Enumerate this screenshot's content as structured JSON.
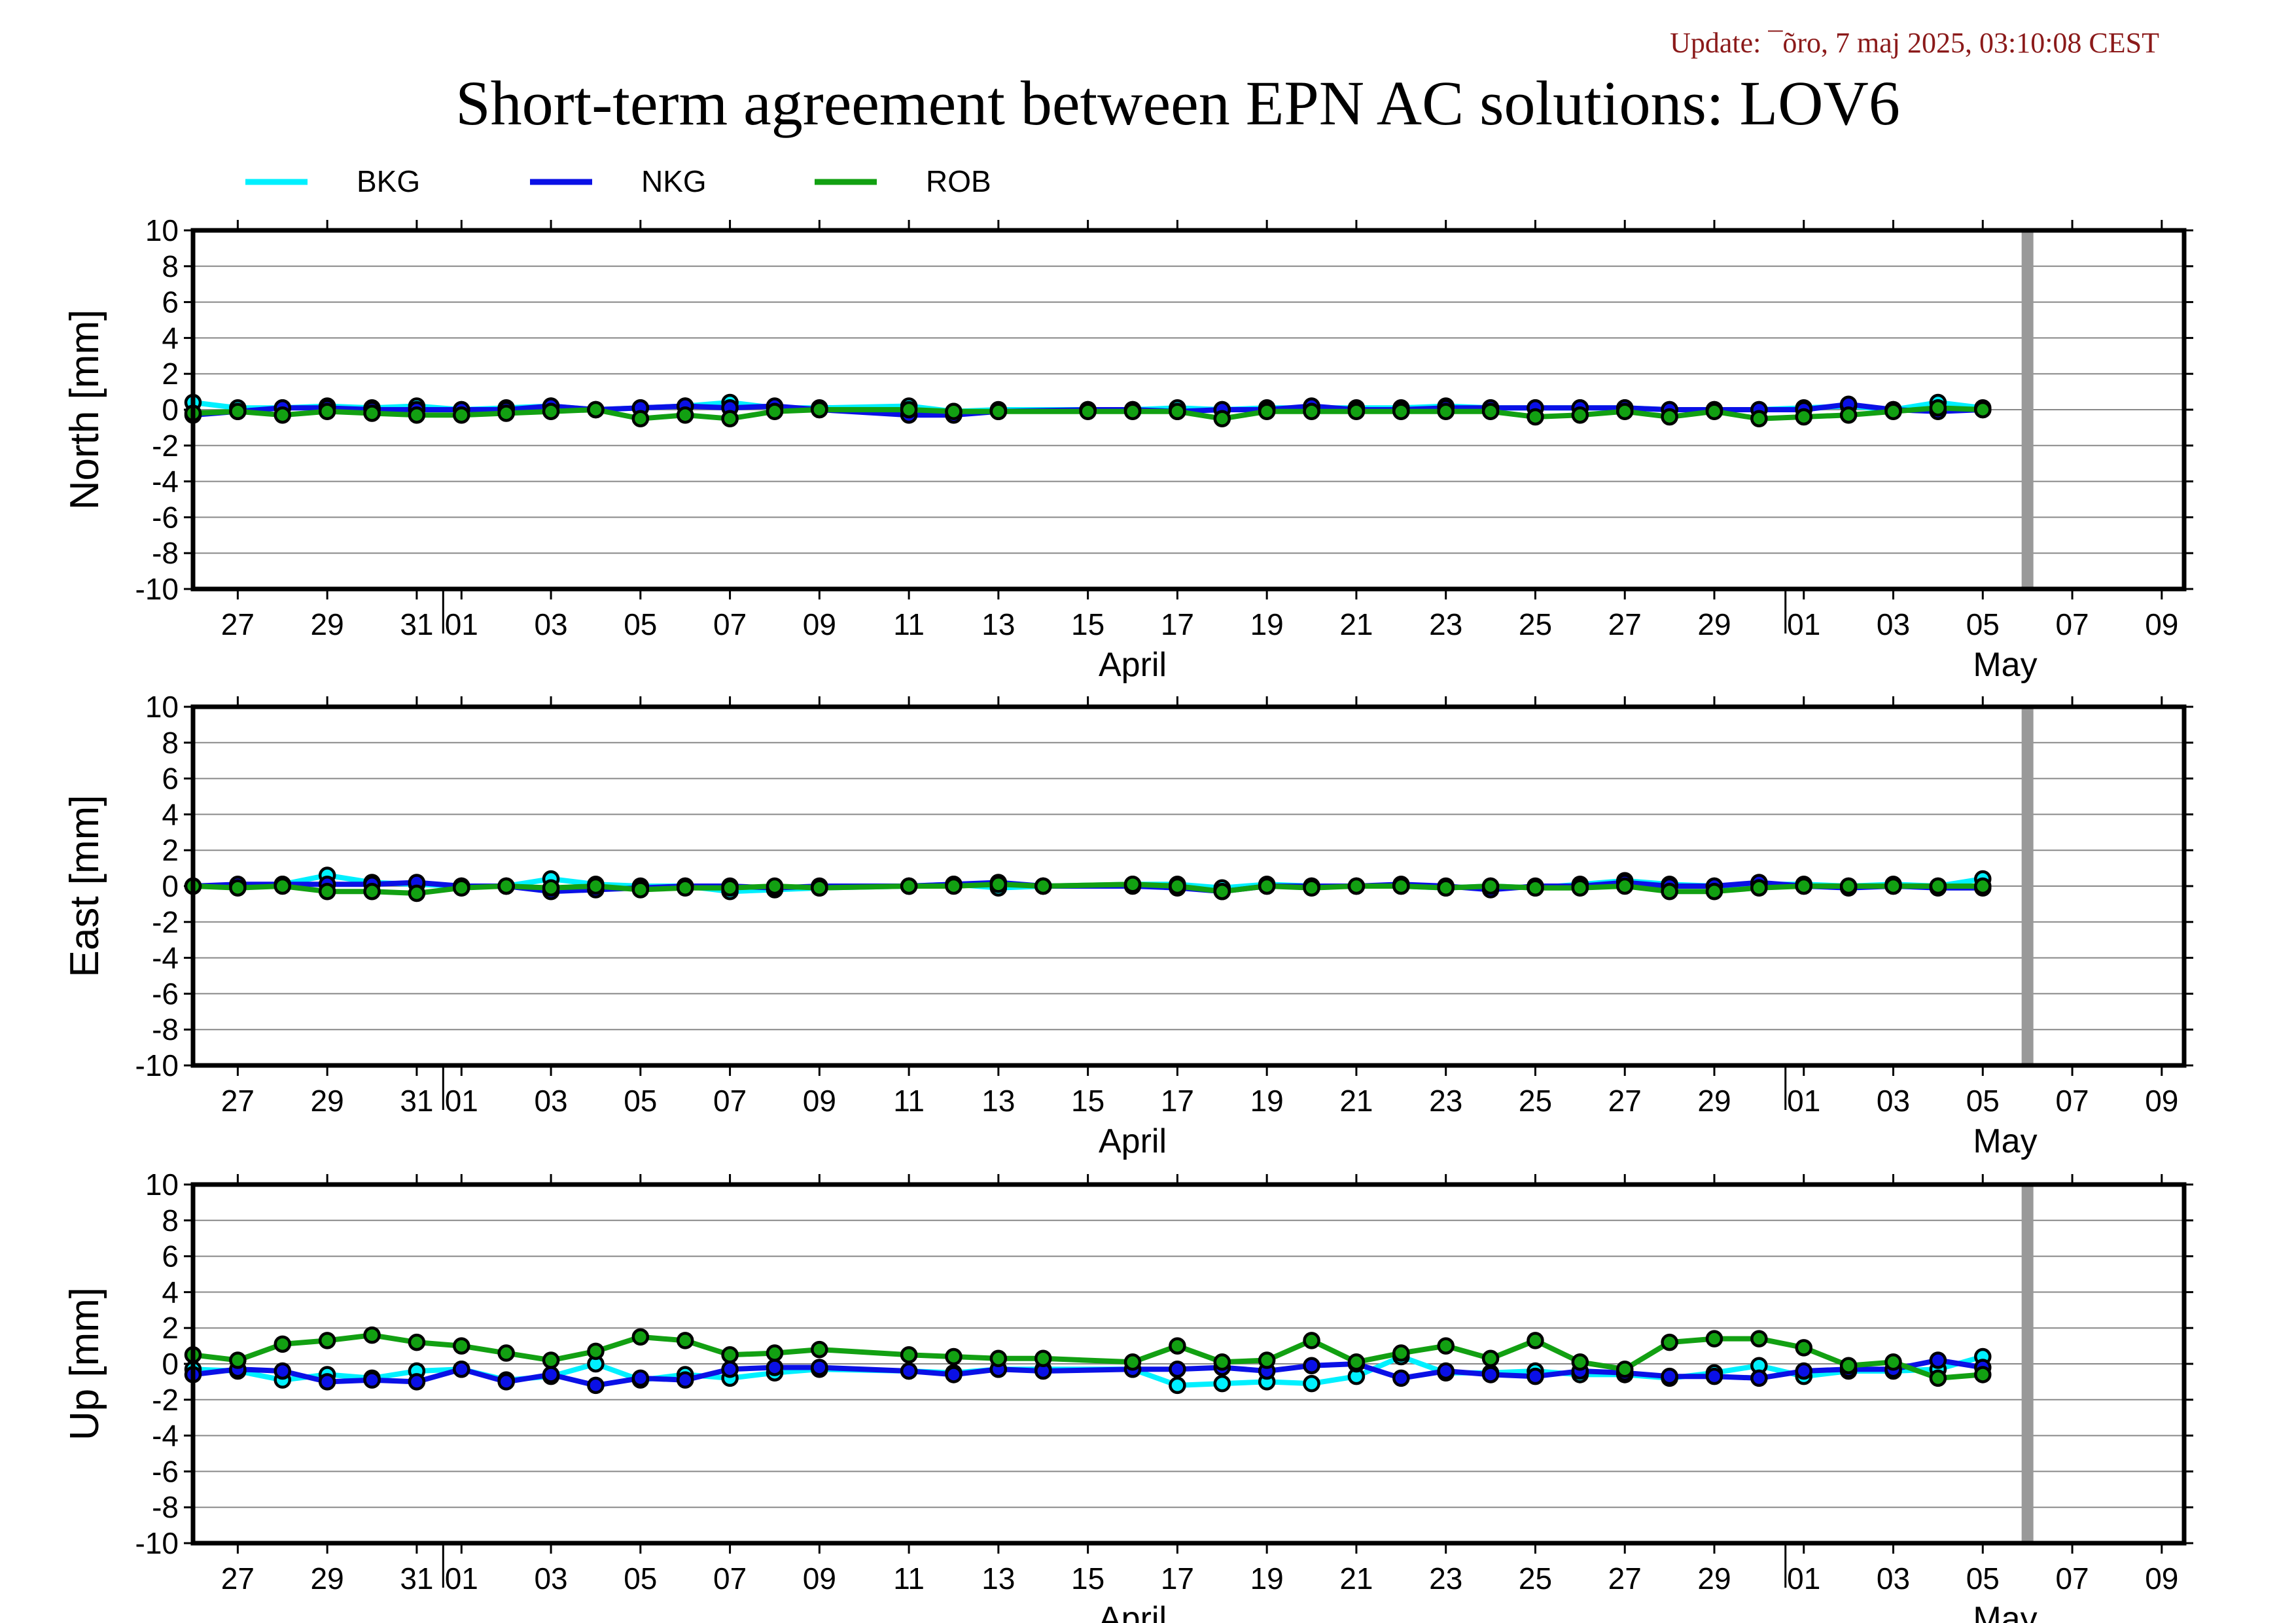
{
  "header": {
    "update_text": "Update: ¯õro, 7 maj 2025, 03:10:08 CEST",
    "title": "Short-term agreement between EPN AC solutions: LOV6"
  },
  "colors": {
    "BKG": "#00f0ff",
    "NKG": "#0a10e6",
    "ROB": "#12a012",
    "marker_edge": "#000000",
    "gridline": "#888888",
    "today_marker": "#999999"
  },
  "chart_data": [
    {
      "type": "line",
      "ylabel": "North [mm]",
      "ylim": [
        -10,
        10
      ],
      "yticks": [
        -10,
        -8,
        -6,
        -4,
        -2,
        0,
        2,
        4,
        6,
        8,
        10
      ],
      "x": [
        0,
        1,
        2,
        3,
        4,
        5,
        6,
        7,
        8,
        9,
        10,
        11,
        12,
        13,
        14,
        16,
        17,
        18,
        20,
        21,
        22,
        23,
        24,
        25,
        26,
        27,
        28,
        29,
        30,
        31,
        32,
        33,
        34,
        35,
        36,
        37,
        38,
        39,
        40
      ],
      "x_dates": [
        "Mar 26",
        "Mar 27",
        "Mar 28",
        "Mar 29",
        "Mar 30",
        "Mar 31",
        "Apr 01",
        "Apr 02",
        "Apr 03",
        "Apr 04",
        "Apr 05",
        "Apr 06",
        "Apr 07",
        "Apr 08",
        "Apr 09",
        "Apr 11",
        "Apr 12",
        "Apr 13",
        "Apr 15",
        "Apr 16",
        "Apr 17",
        "Apr 18",
        "Apr 19",
        "Apr 20",
        "Apr 21",
        "Apr 22",
        "Apr 23",
        "Apr 24",
        "Apr 25",
        "Apr 26",
        "Apr 27",
        "Apr 28",
        "Apr 29",
        "Apr 30",
        "May 01",
        "May 02",
        "May 03",
        "May 04",
        "May 05"
      ],
      "series": [
        {
          "name": "BKG",
          "values": [
            0.4,
            0.1,
            0.1,
            0.2,
            0.1,
            0.2,
            0.0,
            0.1,
            0.2,
            0.0,
            0.1,
            0.2,
            0.4,
            0.1,
            0.1,
            0.2,
            -0.1,
            0.0,
            0.0,
            0.0,
            0.1,
            0.0,
            0.1,
            0.1,
            0.1,
            0.1,
            0.2,
            0.1,
            0.1,
            0.1,
            0.1,
            0.0,
            0.0,
            0.0,
            0.1,
            0.2,
            0.0,
            0.4,
            0.1
          ]
        },
        {
          "name": "NKG",
          "values": [
            -0.3,
            -0.1,
            0.1,
            0.1,
            0.0,
            0.0,
            0.0,
            0.0,
            0.2,
            0.0,
            0.1,
            0.2,
            0.1,
            0.2,
            0.0,
            -0.3,
            -0.3,
            -0.1,
            0.0,
            0.0,
            -0.1,
            0.0,
            0.0,
            0.2,
            0.0,
            0.0,
            0.1,
            0.1,
            0.1,
            0.1,
            0.1,
            0.0,
            0.0,
            0.0,
            0.0,
            0.3,
            0.0,
            -0.1,
            0.0
          ]
        },
        {
          "name": "ROB",
          "values": [
            -0.2,
            -0.1,
            -0.3,
            -0.1,
            -0.2,
            -0.3,
            -0.3,
            -0.2,
            -0.1,
            0.0,
            -0.5,
            -0.3,
            -0.5,
            -0.1,
            0.0,
            0.0,
            -0.1,
            -0.1,
            -0.1,
            -0.1,
            -0.1,
            -0.5,
            -0.1,
            -0.1,
            -0.1,
            -0.1,
            -0.1,
            -0.1,
            -0.4,
            -0.3,
            -0.1,
            -0.4,
            -0.1,
            -0.5,
            -0.4,
            -0.3,
            -0.1,
            0.1,
            0.0
          ]
        }
      ]
    },
    {
      "type": "line",
      "ylabel": "East [mm]",
      "ylim": [
        -10,
        10
      ],
      "yticks": [
        -10,
        -8,
        -6,
        -4,
        -2,
        0,
        2,
        4,
        6,
        8,
        10
      ],
      "x": [
        0,
        1,
        2,
        3,
        4,
        5,
        6,
        7,
        8,
        9,
        10,
        11,
        12,
        13,
        14,
        16,
        17,
        18,
        19,
        21,
        22,
        23,
        24,
        25,
        26,
        27,
        28,
        29,
        30,
        31,
        32,
        33,
        34,
        35,
        36,
        37,
        38,
        39,
        40
      ],
      "x_dates": [
        "Mar 26",
        "Mar 27",
        "Mar 28",
        "Mar 29",
        "Mar 30",
        "Mar 31",
        "Apr 01",
        "Apr 02",
        "Apr 03",
        "Apr 04",
        "Apr 05",
        "Apr 06",
        "Apr 07",
        "Apr 08",
        "Apr 09",
        "Apr 11",
        "Apr 12",
        "Apr 13",
        "Apr 14",
        "Apr 16",
        "Apr 17",
        "Apr 18",
        "Apr 19",
        "Apr 20",
        "Apr 21",
        "Apr 22",
        "Apr 23",
        "Apr 24",
        "Apr 25",
        "Apr 26",
        "Apr 27",
        "Apr 28",
        "Apr 29",
        "Apr 30",
        "May 01",
        "May 02",
        "May 03",
        "May 04",
        "May 05"
      ],
      "series": [
        {
          "name": "BKG",
          "values": [
            0.0,
            0.0,
            0.1,
            0.6,
            0.2,
            0.1,
            0.0,
            0.0,
            0.4,
            0.1,
            0.0,
            0.0,
            -0.3,
            -0.2,
            -0.1,
            0.0,
            0.1,
            -0.1,
            0.0,
            0.1,
            0.1,
            -0.1,
            0.1,
            0.0,
            0.0,
            0.0,
            -0.1,
            0.0,
            -0.1,
            0.1,
            0.3,
            0.1,
            0.0,
            0.1,
            0.1,
            0.0,
            0.1,
            0.0,
            0.4
          ]
        },
        {
          "name": "NKG",
          "values": [
            0.0,
            0.1,
            0.1,
            0.1,
            0.1,
            0.2,
            0.0,
            0.0,
            -0.3,
            -0.2,
            -0.1,
            0.0,
            0.0,
            -0.1,
            0.0,
            0.0,
            0.1,
            0.2,
            0.0,
            0.0,
            -0.1,
            -0.3,
            0.0,
            0.0,
            0.0,
            0.1,
            0.0,
            -0.2,
            0.0,
            0.0,
            0.2,
            0.0,
            0.0,
            0.2,
            0.0,
            -0.1,
            0.0,
            -0.1,
            -0.1
          ]
        },
        {
          "name": "ROB",
          "values": [
            0.0,
            -0.1,
            0.0,
            -0.3,
            -0.3,
            -0.4,
            -0.1,
            0.0,
            -0.1,
            0.0,
            -0.2,
            -0.1,
            -0.1,
            0.0,
            -0.1,
            0.0,
            0.0,
            0.1,
            0.0,
            0.1,
            0.0,
            -0.3,
            0.0,
            -0.1,
            0.0,
            0.0,
            -0.1,
            0.0,
            -0.1,
            -0.1,
            0.0,
            -0.3,
            -0.3,
            -0.1,
            0.0,
            0.0,
            0.0,
            0.0,
            0.0
          ]
        }
      ]
    },
    {
      "type": "line",
      "ylabel": "Up [mm]",
      "ylim": [
        -10,
        10
      ],
      "yticks": [
        -10,
        -8,
        -6,
        -4,
        -2,
        0,
        2,
        4,
        6,
        8,
        10
      ],
      "x": [
        0,
        1,
        2,
        3,
        4,
        5,
        6,
        7,
        8,
        9,
        10,
        11,
        12,
        13,
        14,
        16,
        17,
        18,
        19,
        21,
        22,
        23,
        24,
        25,
        26,
        27,
        28,
        29,
        30,
        31,
        32,
        33,
        34,
        35,
        36,
        37,
        38,
        39,
        40
      ],
      "x_dates": [
        "Mar 26",
        "Mar 27",
        "Mar 28",
        "Mar 29",
        "Mar 30",
        "Mar 31",
        "Apr 01",
        "Apr 02",
        "Apr 03",
        "Apr 04",
        "Apr 05",
        "Apr 06",
        "Apr 07",
        "Apr 08",
        "Apr 09",
        "Apr 11",
        "Apr 12",
        "Apr 13",
        "Apr 14",
        "Apr 16",
        "Apr 17",
        "Apr 18",
        "Apr 19",
        "Apr 20",
        "Apr 21",
        "Apr 22",
        "Apr 23",
        "Apr 24",
        "Apr 25",
        "Apr 26",
        "Apr 27",
        "Apr 28",
        "Apr 29",
        "Apr 30",
        "May 01",
        "May 02",
        "May 03",
        "May 04",
        "May 05"
      ],
      "series": [
        {
          "name": "BKG",
          "values": [
            -0.3,
            -0.4,
            -0.9,
            -0.6,
            -0.8,
            -0.4,
            -0.3,
            -0.9,
            -0.7,
            0.0,
            -0.9,
            -0.6,
            -0.8,
            -0.5,
            -0.3,
            -0.4,
            -0.5,
            -0.3,
            -0.3,
            -0.3,
            -1.2,
            -1.1,
            -1.0,
            -1.1,
            -0.7,
            0.4,
            -0.5,
            -0.5,
            -0.4,
            -0.6,
            -0.6,
            -0.8,
            -0.5,
            -0.1,
            -0.7,
            -0.4,
            -0.4,
            -0.3,
            0.4
          ]
        },
        {
          "name": "NKG",
          "values": [
            -0.6,
            -0.3,
            -0.4,
            -1.0,
            -0.9,
            -1.0,
            -0.3,
            -1.0,
            -0.6,
            -1.2,
            -0.8,
            -0.9,
            -0.3,
            -0.2,
            -0.2,
            -0.4,
            -0.6,
            -0.3,
            -0.4,
            -0.3,
            -0.3,
            -0.2,
            -0.4,
            -0.1,
            0.0,
            -0.8,
            -0.4,
            -0.6,
            -0.7,
            -0.4,
            -0.5,
            -0.7,
            -0.7,
            -0.8,
            -0.4,
            -0.3,
            -0.3,
            0.2,
            -0.2
          ]
        },
        {
          "name": "ROB",
          "values": [
            0.5,
            0.2,
            1.1,
            1.3,
            1.6,
            1.2,
            1.0,
            0.6,
            0.2,
            0.7,
            1.5,
            1.3,
            0.5,
            0.6,
            0.8,
            0.5,
            0.4,
            0.3,
            0.3,
            0.1,
            1.0,
            0.1,
            0.2,
            1.3,
            0.1,
            0.6,
            1.0,
            0.3,
            1.3,
            0.1,
            -0.3,
            1.2,
            1.4,
            1.4,
            0.9,
            -0.1,
            0.1,
            -0.8,
            -0.6
          ]
        }
      ]
    }
  ],
  "x_axis": {
    "range_days": [
      0,
      44.5
    ],
    "ticks": [
      {
        "day": 1,
        "label": "27"
      },
      {
        "day": 3,
        "label": "29"
      },
      {
        "day": 5,
        "label": "31"
      },
      {
        "day": 6,
        "label": "01"
      },
      {
        "day": 8,
        "label": "03"
      },
      {
        "day": 10,
        "label": "05"
      },
      {
        "day": 12,
        "label": "07"
      },
      {
        "day": 14,
        "label": "09"
      },
      {
        "day": 16,
        "label": "11"
      },
      {
        "day": 18,
        "label": "13"
      },
      {
        "day": 20,
        "label": "15"
      },
      {
        "day": 22,
        "label": "17"
      },
      {
        "day": 24,
        "label": "19"
      },
      {
        "day": 26,
        "label": "21"
      },
      {
        "day": 28,
        "label": "23"
      },
      {
        "day": 30,
        "label": "25"
      },
      {
        "day": 32,
        "label": "27"
      },
      {
        "day": 34,
        "label": "29"
      },
      {
        "day": 36,
        "label": "01"
      },
      {
        "day": 38,
        "label": "03"
      },
      {
        "day": 40,
        "label": "05"
      },
      {
        "day": 42,
        "label": "07"
      },
      {
        "day": 44,
        "label": "09"
      }
    ],
    "month_boundaries": [
      6,
      36
    ],
    "month_labels": [
      {
        "day": 21,
        "label": "April"
      },
      {
        "day": 40.5,
        "label": "May"
      }
    ],
    "today_day": 41
  },
  "legend": [
    {
      "name": "BKG",
      "label": "BKG"
    },
    {
      "name": "NKG",
      "label": "NKG"
    },
    {
      "name": "ROB",
      "label": "ROB"
    }
  ]
}
